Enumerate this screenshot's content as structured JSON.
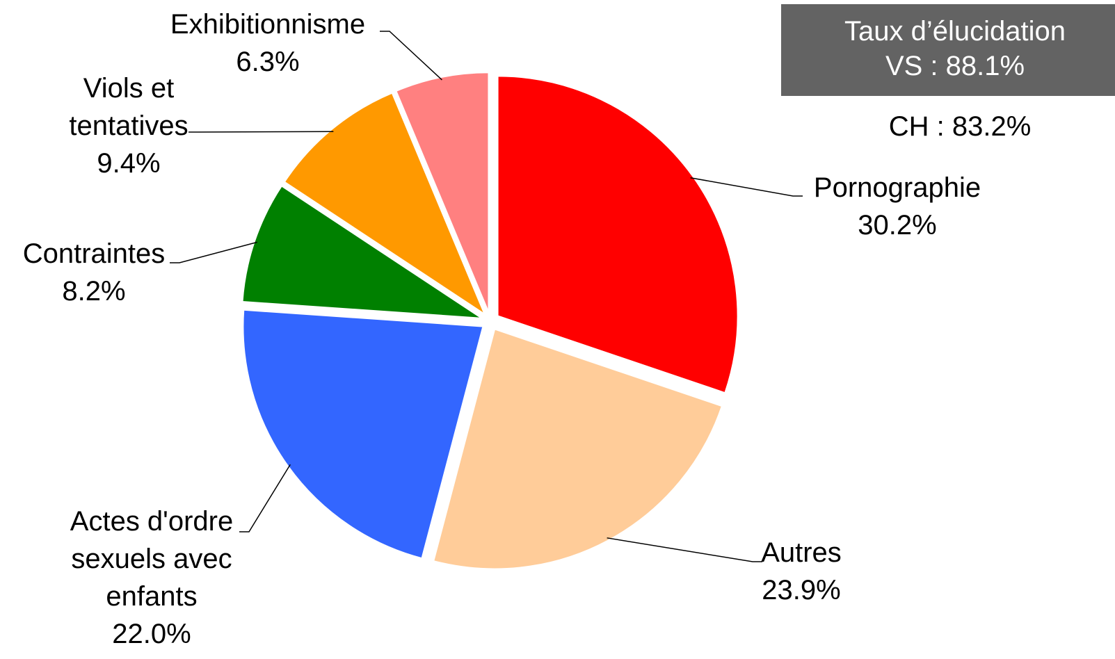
{
  "chart_data": {
    "type": "pie",
    "categories": [
      "Pornographie",
      "Autres",
      "Actes d'ordre sexuels avec enfants",
      "Contraintes",
      "Viols et tentatives",
      "Exhibitionnisme"
    ],
    "values": [
      30.2,
      23.9,
      22.0,
      8.2,
      9.4,
      6.3
    ],
    "value_labels": [
      "30.2%",
      "23.9%",
      "22.0%",
      "8.2%",
      "9.4%",
      "6.3%"
    ],
    "colors": [
      "#ff0000",
      "#ffcc99",
      "#3366ff",
      "#008000",
      "#ff9900",
      "#ff8080"
    ],
    "annotations": [
      "Taux d’élucidation",
      "VS : 88.1%",
      "CH : 83.2%"
    ]
  }
}
